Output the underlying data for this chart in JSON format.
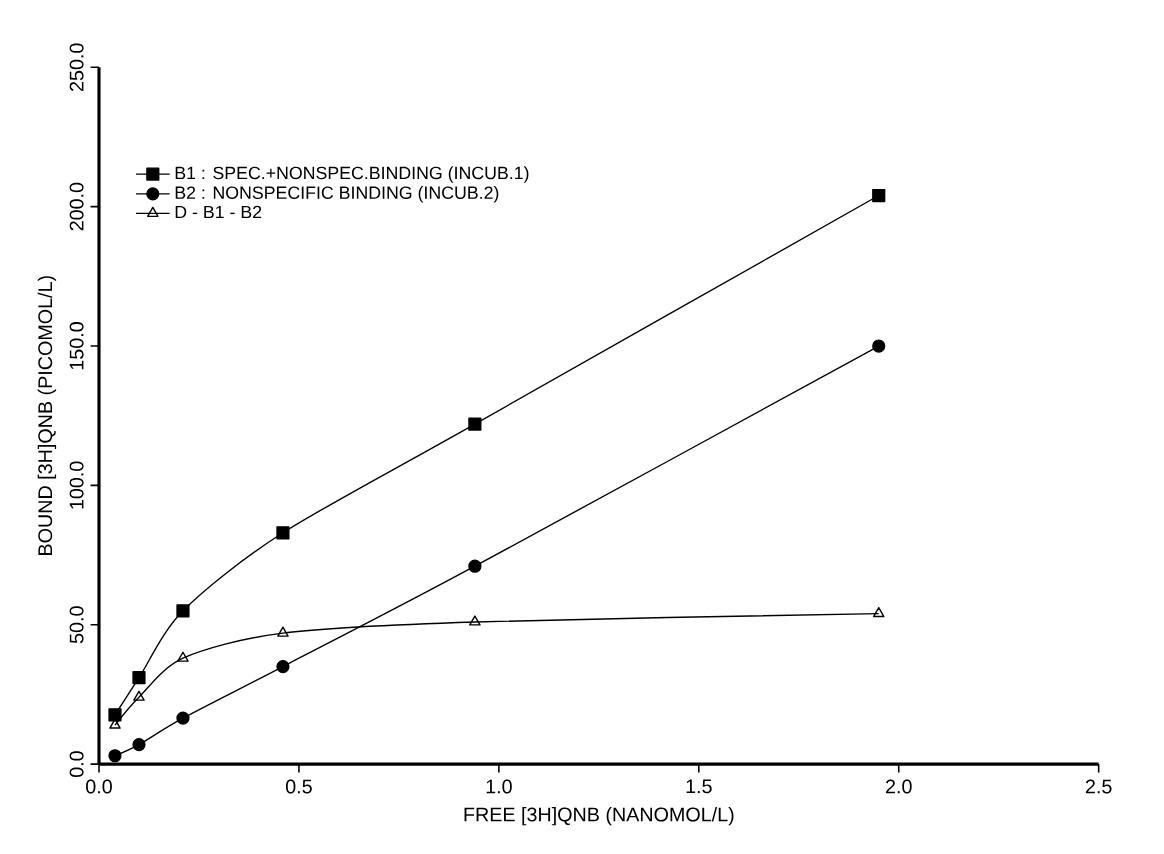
{
  "chart_data": {
    "type": "line",
    "xlabel": "FREE [3H]QNB  (NANOMOL/L)",
    "ylabel": "BOUND [3H]QNB  (PICOMOL/L)",
    "xlim": [
      0,
      2.5
    ],
    "ylim": [
      0,
      250
    ],
    "xticks": [
      {
        "value": 0,
        "label": "0.0"
      },
      {
        "value": 0.5,
        "label": "0.5"
      },
      {
        "value": 1,
        "label": "1.0"
      },
      {
        "value": 1.5,
        "label": "1.5"
      },
      {
        "value": 2,
        "label": "2.0"
      },
      {
        "value": 2.5,
        "label": "2.5"
      }
    ],
    "yticks": [
      {
        "value": 0,
        "label": "0.0"
      },
      {
        "value": 50,
        "label": "50.0"
      },
      {
        "value": 100,
        "label": "100.0"
      },
      {
        "value": 150,
        "label": "150.0"
      },
      {
        "value": 200,
        "label": "200.0"
      },
      {
        "value": 250,
        "label": "250.0"
      }
    ],
    "legend": "top left",
    "grid": false,
    "line_style": "solid",
    "series": [
      {
        "name": "B1 : SPEC.+NONSPEC.BINDING (INCUB.1)",
        "color": "#000000",
        "marker": "square",
        "x": [
          0.04,
          0.1,
          0.21,
          0.46,
          0.94,
          1.95
        ],
        "values": [
          17.7,
          31,
          55,
          83,
          122,
          204
        ]
      },
      {
        "name": "B2 : NONSPECIFIC BINDING (INCUB.2)",
        "color": "#000000",
        "marker": "circle",
        "x": [
          0.04,
          0.1,
          0.21,
          0.46,
          0.94,
          1.95
        ],
        "values": [
          3,
          7,
          16.5,
          35,
          71,
          150
        ]
      },
      {
        "name": "D - B1 - B2",
        "color": "#000000",
        "marker": "triangle",
        "x": [
          0.04,
          0.1,
          0.21,
          0.46,
          0.94,
          1.95
        ],
        "values": [
          14,
          24,
          38,
          47,
          51,
          54
        ]
      }
    ]
  }
}
